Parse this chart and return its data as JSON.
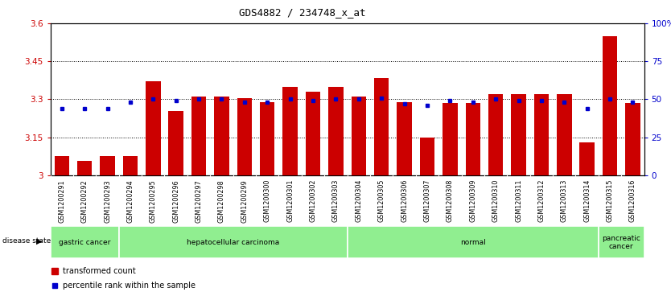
{
  "title": "GDS4882 / 234748_x_at",
  "samples": [
    "GSM1200291",
    "GSM1200292",
    "GSM1200293",
    "GSM1200294",
    "GSM1200295",
    "GSM1200296",
    "GSM1200297",
    "GSM1200298",
    "GSM1200299",
    "GSM1200300",
    "GSM1200301",
    "GSM1200302",
    "GSM1200303",
    "GSM1200304",
    "GSM1200305",
    "GSM1200306",
    "GSM1200307",
    "GSM1200308",
    "GSM1200309",
    "GSM1200310",
    "GSM1200311",
    "GSM1200312",
    "GSM1200313",
    "GSM1200314",
    "GSM1200315",
    "GSM1200316"
  ],
  "bar_values": [
    3.075,
    3.055,
    3.075,
    3.075,
    3.37,
    3.255,
    3.31,
    3.31,
    3.305,
    3.29,
    3.35,
    3.33,
    3.35,
    3.31,
    3.385,
    3.29,
    3.15,
    3.285,
    3.285,
    3.32,
    3.32,
    3.32,
    3.32,
    3.13,
    3.55,
    3.285
  ],
  "percentile_values": [
    44,
    44,
    44,
    48,
    50,
    49,
    50,
    50,
    48,
    48,
    50,
    49,
    50,
    50,
    51,
    47,
    46,
    49,
    48,
    50,
    49,
    49,
    48,
    44,
    50,
    48
  ],
  "bar_color": "#CC0000",
  "percentile_color": "#0000CC",
  "ylim_left": [
    3.0,
    3.6
  ],
  "ylim_right": [
    0,
    100
  ],
  "yticks_left": [
    3.0,
    3.15,
    3.3,
    3.45,
    3.6
  ],
  "yticks_right": [
    0,
    25,
    50,
    75,
    100
  ],
  "ytick_labels_left": [
    "3",
    "3.15",
    "3.3",
    "3.45",
    "3.6"
  ],
  "ytick_labels_right": [
    "0",
    "25",
    "50",
    "75",
    "100%"
  ],
  "hlines": [
    3.15,
    3.3,
    3.45
  ],
  "disease_groups": [
    {
      "label": "gastric cancer",
      "start": 0,
      "end": 3,
      "color": "#90EE90"
    },
    {
      "label": "hepatocellular carcinoma",
      "start": 3,
      "end": 13,
      "color": "#90EE90"
    },
    {
      "label": "normal",
      "start": 13,
      "end": 24,
      "color": "#90EE90"
    },
    {
      "label": "pancreatic\ncancer",
      "start": 24,
      "end": 26,
      "color": "#90EE90"
    }
  ],
  "bar_width": 0.65,
  "background_color": "#ffffff",
  "plot_bg_color": "#ffffff",
  "tick_label_bg": "#c8c8c8"
}
